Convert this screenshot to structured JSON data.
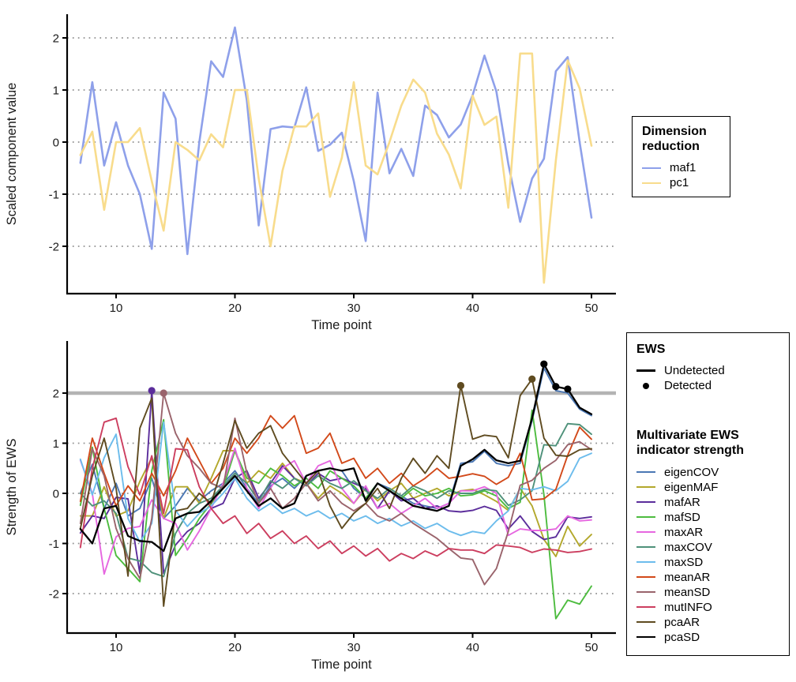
{
  "colors": {
    "maf1": "#8ea0ea",
    "pc1": "#f8dc8c",
    "eigenCOV": "#4a77b4",
    "eigenMAF": "#b3a82c",
    "mafAR": "#5b2d9b",
    "mafSD": "#4dbc3f",
    "maxAR": "#e667e0",
    "maxCOV": "#4e917a",
    "maxSD": "#6cbcec",
    "meanAR": "#d2491a",
    "meanSD": "#9a646c",
    "mutINFO": "#cc3e5f",
    "pcaAR": "#5f4b20",
    "pcaSD": "#000000",
    "threshold": "#b3b3b3",
    "grid": "#909090",
    "axis": "#000000"
  },
  "top_legend": {
    "title_line1": "Dimension",
    "title_line2": "reduction",
    "items": [
      {
        "label": "maf1"
      },
      {
        "label": "pc1"
      }
    ]
  },
  "bottom_legend": {
    "ews_title": "EWS",
    "undetected_label": "Undetected",
    "detected_label": "Detected",
    "multi_title_line1": "Multivariate EWS",
    "multi_title_line2": "indicator strength",
    "items": [
      "eigenCOV",
      "eigenMAF",
      "mafAR",
      "mafSD",
      "maxAR",
      "maxCOV",
      "maxSD",
      "meanAR",
      "meanSD",
      "mutINFO",
      "pcaAR",
      "pcaSD"
    ]
  },
  "chart_data": [
    {
      "type": "line",
      "title": "",
      "xlabel": "Time point",
      "ylabel": "Scaled component value",
      "x": [
        7,
        8,
        9,
        10,
        11,
        12,
        13,
        14,
        15,
        16,
        17,
        18,
        19,
        20,
        21,
        22,
        23,
        24,
        25,
        26,
        27,
        28,
        29,
        30,
        31,
        32,
        33,
        34,
        35,
        36,
        37,
        38,
        39,
        40,
        41,
        42,
        43,
        44,
        45,
        46,
        47,
        48,
        49,
        50
      ],
      "xticks": [
        10,
        20,
        30,
        40,
        50
      ],
      "yticks": [
        2,
        1,
        0,
        -1,
        -2
      ],
      "grid_yticks": [
        2,
        1,
        0,
        -1,
        -2
      ],
      "xlim": [
        4.8,
        52.2
      ],
      "ylim": [
        -2.9,
        2.45
      ],
      "legend_title": "Dimension reduction",
      "series": [
        {
          "name": "maf1",
          "values": [
            -0.4,
            1.15,
            -0.45,
            0.38,
            -0.45,
            -1.0,
            -2.05,
            0.95,
            0.45,
            -2.15,
            0.0,
            1.55,
            1.25,
            2.2,
            0.8,
            -1.6,
            0.25,
            0.3,
            0.28,
            1.05,
            -0.17,
            -0.05,
            0.18,
            -0.75,
            -1.9,
            0.95,
            -0.6,
            -0.13,
            -0.65,
            0.7,
            0.52,
            0.09,
            0.34,
            0.9,
            1.66,
            0.97,
            -0.42,
            -1.53,
            -0.7,
            -0.32,
            1.36,
            1.63,
            0.0,
            -1.45
          ]
        },
        {
          "name": "pc1",
          "values": [
            -0.25,
            0.2,
            -1.3,
            0.0,
            0.0,
            0.27,
            -0.75,
            -1.7,
            0.0,
            -0.15,
            -0.35,
            0.15,
            -0.1,
            1.0,
            1.0,
            -0.7,
            -2.0,
            -0.55,
            0.3,
            0.3,
            0.55,
            -1.05,
            -0.3,
            1.15,
            -0.45,
            -0.62,
            0.0,
            0.7,
            1.2,
            0.95,
            0.16,
            -0.24,
            -0.89,
            0.89,
            0.33,
            0.49,
            -1.26,
            1.7,
            1.7,
            -2.7,
            -0.35,
            1.57,
            1.03,
            -0.07
          ]
        }
      ]
    },
    {
      "type": "line",
      "title": "",
      "xlabel": "Time point",
      "ylabel": "Strength of EWS",
      "x": [
        7,
        8,
        9,
        10,
        11,
        12,
        13,
        14,
        15,
        16,
        17,
        18,
        19,
        20,
        21,
        22,
        23,
        24,
        25,
        26,
        27,
        28,
        29,
        30,
        31,
        32,
        33,
        34,
        35,
        36,
        37,
        38,
        39,
        40,
        41,
        42,
        43,
        44,
        45,
        46,
        47,
        48,
        49,
        50
      ],
      "xticks": [
        10,
        20,
        30,
        40,
        50
      ],
      "yticks": [
        2,
        1,
        0,
        -1,
        -2
      ],
      "grid_yticks": [
        1,
        0,
        -1,
        -2
      ],
      "xlim": [
        4.8,
        52.2
      ],
      "ylim": [
        -2.8,
        3.0
      ],
      "threshold_y": 2,
      "legend_title": "Multivariate EWS indicator strength",
      "series": [
        {
          "name": "eigenCOV",
          "values": [
            0.0,
            0.58,
            -0.3,
            0.2,
            -0.45,
            -0.3,
            0.3,
            -0.5,
            -0.25,
            0.1,
            -0.15,
            0.05,
            0.2,
            0.45,
            0.1,
            -0.2,
            0.15,
            0.3,
            0.1,
            0.35,
            0.45,
            0.5,
            0.45,
            0.1,
            -0.1,
            0.2,
            0.1,
            -0.05,
            -0.2,
            -0.25,
            -0.3,
            -0.2,
            0.6,
            0.63,
            0.84,
            0.6,
            0.55,
            0.6,
            1.45,
            2.5,
            2.05,
            2.0,
            1.68,
            1.55
          ]
        },
        {
          "name": "eigenMAF",
          "values": [
            -0.45,
            -0.45,
            0.13,
            -0.45,
            -0.35,
            0.24,
            0.71,
            -0.5,
            0.13,
            0.13,
            -0.2,
            0.3,
            0.85,
            0.85,
            0.2,
            0.45,
            0.3,
            0.6,
            0.3,
            0.2,
            -0.1,
            0.15,
            0.0,
            -0.2,
            0.1,
            -0.15,
            0.05,
            0.2,
            -0.1,
            0.0,
            0.1,
            -0.05,
            0.05,
            0.08,
            -0.03,
            -0.16,
            -0.34,
            0.1,
            -0.25,
            -0.92,
            -1.26,
            -0.66,
            -1.05,
            -0.82
          ]
        },
        {
          "name": "mafAR",
          "values": [
            -0.79,
            -0.45,
            -0.5,
            -0.08,
            -0.11,
            -1.6,
            2.05,
            -1.6,
            -1.03,
            -0.76,
            -0.6,
            -0.3,
            -0.2,
            0.3,
            0.45,
            -0.1,
            0.2,
            0.55,
            0.3,
            0.15,
            0.4,
            0.25,
            0.3,
            0.2,
            0.1,
            -0.3,
            0.05,
            -0.15,
            -0.1,
            -0.3,
            -0.25,
            -0.35,
            -0.37,
            -0.34,
            -0.26,
            -0.34,
            -0.71,
            -0.45,
            -0.76,
            -0.92,
            -0.87,
            -0.47,
            -0.5,
            -0.47
          ]
        },
        {
          "name": "mafSD",
          "values": [
            -0.24,
            0.92,
            -0.3,
            -1.24,
            -1.5,
            -1.76,
            0.45,
            1.47,
            -1.24,
            -0.9,
            -0.5,
            -0.2,
            0.1,
            0.85,
            0.3,
            0.2,
            0.5,
            0.35,
            0.15,
            0.3,
            0.1,
            0.45,
            0.3,
            0.15,
            -0.1,
            0.2,
            0.05,
            -0.1,
            0.1,
            -0.05,
            0.0,
            0.1,
            -0.05,
            -0.03,
            0.05,
            -0.05,
            -0.3,
            -0.18,
            1.66,
            -0.03,
            -2.5,
            -2.13,
            -2.21,
            -1.85
          ]
        },
        {
          "name": "maxAR",
          "values": [
            0.66,
            0.0,
            -1.61,
            -0.87,
            -0.7,
            -0.66,
            -0.13,
            -0.5,
            -0.6,
            -1.13,
            -0.75,
            -0.3,
            0.2,
            0.9,
            0.1,
            -0.3,
            0.1,
            0.5,
            0.65,
            0.2,
            0.55,
            0.65,
            0.1,
            -0.2,
            0.15,
            -0.3,
            -0.2,
            -0.4,
            -0.25,
            -0.1,
            -0.3,
            -0.2,
            0.05,
            0.05,
            0.13,
            0.0,
            -0.84,
            -0.71,
            -0.74,
            -0.74,
            -0.71,
            -0.45,
            -0.55,
            -0.53
          ]
        },
        {
          "name": "maxCOV",
          "values": [
            0.0,
            -0.25,
            -0.15,
            -0.4,
            -1.29,
            -1.35,
            -1.58,
            -1.66,
            -0.8,
            -0.4,
            -0.2,
            -0.1,
            0.15,
            0.4,
            0.2,
            -0.15,
            0.25,
            0.1,
            0.3,
            0.15,
            0.35,
            0.2,
            0.1,
            0.25,
            0.05,
            -0.1,
            0.1,
            -0.05,
            0.15,
            0.05,
            -0.1,
            0.05,
            0.0,
            0.0,
            0.08,
            0.05,
            -0.24,
            -0.13,
            0.05,
            0.97,
            0.95,
            1.39,
            1.37,
            1.18
          ]
        },
        {
          "name": "maxSD",
          "values": [
            0.68,
            -0.03,
            0.71,
            1.18,
            -0.5,
            -0.97,
            -0.6,
            1.42,
            -0.34,
            -0.66,
            -0.4,
            -0.25,
            0.0,
            0.3,
            -0.1,
            -0.35,
            -0.2,
            -0.4,
            -0.3,
            -0.45,
            -0.35,
            -0.5,
            -0.4,
            -0.55,
            -0.45,
            -0.6,
            -0.5,
            -0.65,
            -0.55,
            -0.7,
            -0.6,
            -0.75,
            -0.84,
            -0.76,
            -0.8,
            -0.55,
            -0.35,
            0.1,
            0.07,
            0.13,
            0.05,
            0.24,
            0.7,
            0.8
          ]
        },
        {
          "name": "meanAR",
          "values": [
            -0.16,
            1.1,
            0.4,
            -0.25,
            0.15,
            -0.15,
            0.4,
            -0.05,
            0.45,
            1.1,
            0.65,
            0.2,
            0.5,
            1.1,
            0.8,
            1.1,
            1.55,
            1.3,
            1.55,
            0.8,
            0.9,
            1.2,
            0.6,
            0.7,
            0.3,
            0.5,
            0.2,
            0.4,
            0.15,
            0.3,
            0.5,
            0.3,
            0.34,
            0.39,
            0.34,
            0.18,
            0.32,
            0.8,
            -0.13,
            -0.11,
            0.08,
            0.76,
            1.32,
            1.08
          ]
        },
        {
          "name": "meanSD",
          "values": [
            -0.6,
            0.89,
            0.35,
            -0.7,
            -1.3,
            -1.7,
            -0.5,
            2.0,
            1.2,
            0.75,
            0.5,
            0.2,
            0.1,
            1.5,
            0.4,
            -0.2,
            0.1,
            -0.3,
            -0.1,
            0.2,
            -0.15,
            0.05,
            -0.2,
            -0.35,
            -0.2,
            -0.45,
            -0.55,
            -0.4,
            -0.6,
            -0.75,
            -0.9,
            -1.1,
            -1.29,
            -1.32,
            -1.82,
            -1.5,
            -0.76,
            0.16,
            0.26,
            0.5,
            0.66,
            0.97,
            1.03,
            0.87
          ]
        },
        {
          "name": "mutINFO",
          "values": [
            -1.08,
            0.5,
            1.42,
            1.5,
            0.53,
            -0.03,
            0.75,
            -0.4,
            0.89,
            0.87,
            0.13,
            -0.3,
            -0.6,
            -0.45,
            -0.8,
            -0.6,
            -0.9,
            -0.75,
            -1.0,
            -0.85,
            -1.1,
            -0.95,
            -1.2,
            -1.05,
            -1.25,
            -1.1,
            -1.35,
            -1.2,
            -1.3,
            -1.15,
            -1.25,
            -1.1,
            -1.13,
            -1.13,
            -1.2,
            -1.03,
            -1.05,
            -1.08,
            -1.18,
            -1.11,
            -1.13,
            -1.18,
            -1.16,
            -1.11
          ]
        },
        {
          "name": "pcaAR",
          "values": [
            -0.7,
            0.35,
            1.1,
            0.1,
            -1.65,
            1.3,
            1.9,
            -2.25,
            -0.35,
            -0.3,
            0.0,
            -0.2,
            0.6,
            1.45,
            0.9,
            1.2,
            1.35,
            0.8,
            0.5,
            0.2,
            0.45,
            -0.25,
            -0.7,
            -0.4,
            -0.2,
            0.1,
            -0.3,
            0.3,
            0.7,
            0.4,
            0.75,
            0.5,
            2.15,
            1.08,
            1.16,
            1.13,
            0.71,
            1.95,
            2.28,
            1.1,
            0.76,
            0.74,
            0.87,
            0.89
          ]
        },
        {
          "name": "pcaSD",
          "values": [
            -0.71,
            -1.0,
            -0.3,
            -0.25,
            -0.85,
            -0.95,
            -0.97,
            -1.15,
            -0.5,
            -0.4,
            -0.37,
            -0.15,
            0.1,
            0.35,
            0.05,
            -0.25,
            -0.1,
            -0.3,
            -0.2,
            0.35,
            0.45,
            0.5,
            0.45,
            0.5,
            -0.15,
            0.2,
            0.05,
            -0.1,
            -0.25,
            -0.3,
            -0.35,
            -0.25,
            0.55,
            0.68,
            0.87,
            0.66,
            0.6,
            0.65,
            1.5,
            2.58,
            2.13,
            2.08,
            1.71,
            1.58
          ]
        }
      ],
      "detected_points": [
        {
          "series": "mafAR",
          "x": 13,
          "y": 2.05
        },
        {
          "series": "meanSD",
          "x": 14,
          "y": 2.0
        },
        {
          "series": "pcaAR",
          "x": 39,
          "y": 2.15
        },
        {
          "series": "pcaAR",
          "x": 45,
          "y": 2.28
        },
        {
          "series": "pcaSD",
          "x": 46,
          "y": 2.58
        },
        {
          "series": "pcaSD",
          "x": 47,
          "y": 2.13
        },
        {
          "series": "pcaSD",
          "x": 48,
          "y": 2.08
        }
      ]
    }
  ]
}
